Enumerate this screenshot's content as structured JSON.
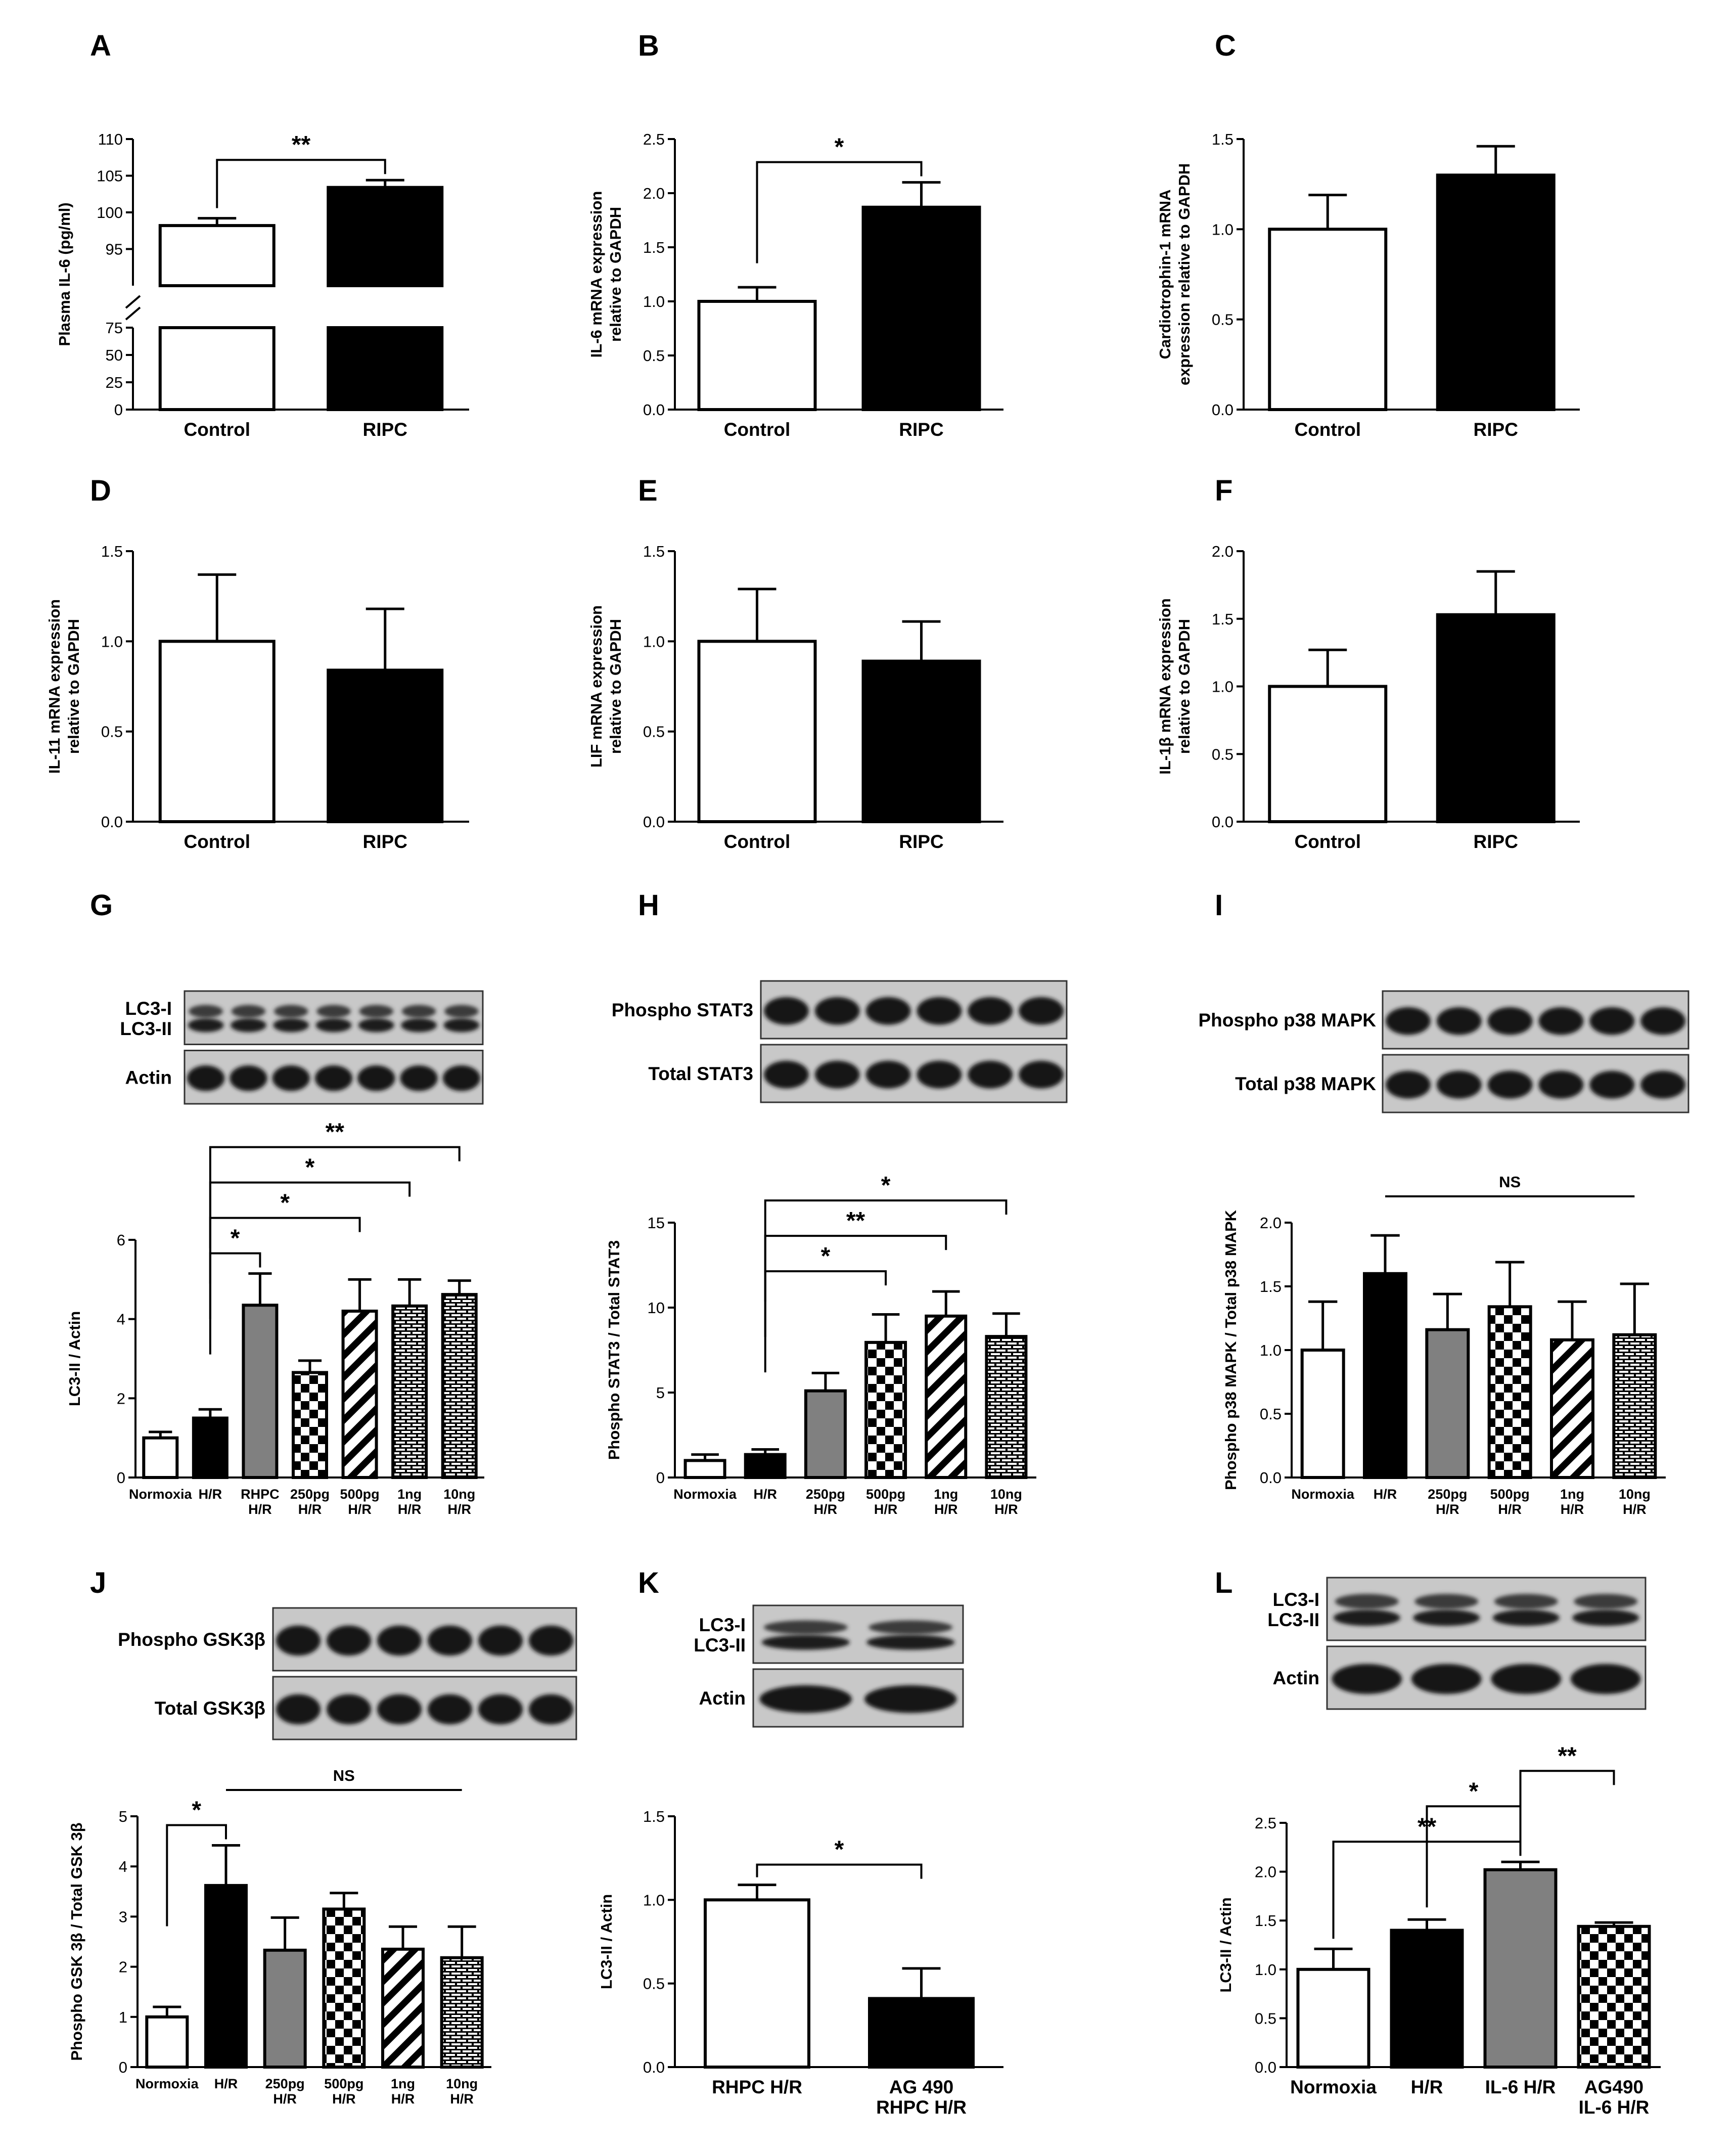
{
  "chart_data": [
    {
      "id": "A",
      "panel_label": "A",
      "type": "bar",
      "ylabel": "Plasma IL-6 (pg/ml)",
      "categories": [
        "Control",
        "RIPC"
      ],
      "values": [
        98.2,
        103.4
      ],
      "errors": [
        1.0,
        1.0
      ],
      "fills": [
        "white",
        "black"
      ],
      "axis_break": true,
      "lower_ticks": [
        0,
        25,
        50,
        75
      ],
      "upper_ticks": [
        95,
        100,
        105,
        110
      ],
      "tick_labels": [
        "0",
        "25",
        "50",
        "75",
        "95",
        "100",
        "105",
        "110"
      ],
      "significance": [
        {
          "from": 0,
          "to": 1,
          "label": "**",
          "level": 0
        }
      ]
    },
    {
      "id": "B",
      "panel_label": "B",
      "type": "bar",
      "ylabel": [
        "IL-6 mRNA expression",
        "relative to GAPDH"
      ],
      "categories": [
        "Control",
        "RIPC"
      ],
      "values": [
        1.0,
        1.87
      ],
      "errors": [
        0.13,
        0.23
      ],
      "fills": [
        "white",
        "black"
      ],
      "ylim": [
        0,
        2.5
      ],
      "ticks": [
        0,
        0.5,
        1.0,
        1.5,
        2.0,
        2.5
      ],
      "tick_labels": [
        "0.0",
        "0.5",
        "1.0",
        "1.5",
        "2.0",
        "2.5"
      ],
      "significance": [
        {
          "from": 0,
          "to": 1,
          "label": "*",
          "level": 0
        }
      ]
    },
    {
      "id": "C",
      "panel_label": "C",
      "type": "bar",
      "ylabel": [
        "Cardiotrophin-1 mRNA",
        "expression relative to GAPDH"
      ],
      "categories": [
        "Control",
        "RIPC"
      ],
      "values": [
        1.0,
        1.3
      ],
      "errors": [
        0.19,
        0.16
      ],
      "fills": [
        "white",
        "black"
      ],
      "ylim": [
        0,
        1.5
      ],
      "ticks": [
        0,
        0.5,
        1.0,
        1.5
      ],
      "tick_labels": [
        "0.0",
        "0.5",
        "1.0",
        "1.5"
      ],
      "significance": []
    },
    {
      "id": "D",
      "panel_label": "D",
      "type": "bar",
      "ylabel": [
        "IL-11 mRNA expression",
        "relative to GAPDH"
      ],
      "categories": [
        "Control",
        "RIPC"
      ],
      "values": [
        1.0,
        0.84
      ],
      "errors": [
        0.37,
        0.34
      ],
      "fills": [
        "white",
        "black"
      ],
      "ylim": [
        0,
        1.5
      ],
      "ticks": [
        0,
        0.5,
        1.0,
        1.5
      ],
      "tick_labels": [
        "0.0",
        "0.5",
        "1.0",
        "1.5"
      ],
      "significance": []
    },
    {
      "id": "E",
      "panel_label": "E",
      "type": "bar",
      "ylabel": [
        "LIF mRNA expression",
        "relative to GAPDH"
      ],
      "categories": [
        "Control",
        "RIPC"
      ],
      "values": [
        1.0,
        0.89
      ],
      "errors": [
        0.29,
        0.22
      ],
      "fills": [
        "white",
        "black"
      ],
      "ylim": [
        0,
        1.5
      ],
      "ticks": [
        0,
        0.5,
        1.0,
        1.5
      ],
      "tick_labels": [
        "0.0",
        "0.5",
        "1.0",
        "1.5"
      ],
      "significance": []
    },
    {
      "id": "F",
      "panel_label": "F",
      "type": "bar",
      "ylabel": [
        "IL-1β mRNA expression",
        "relative to GAPDH"
      ],
      "categories": [
        "Control",
        "RIPC"
      ],
      "values": [
        1.0,
        1.53
      ],
      "errors": [
        0.27,
        0.32
      ],
      "fills": [
        "white",
        "black"
      ],
      "ylim": [
        0,
        2.0
      ],
      "ticks": [
        0,
        0.5,
        1.0,
        1.5,
        2.0
      ],
      "tick_labels": [
        "0.0",
        "0.5",
        "1.0",
        "1.5",
        "2.0"
      ],
      "significance": []
    },
    {
      "id": "G",
      "panel_label": "G",
      "type": "bar",
      "ylabel": "LC3-II / Actin",
      "categories": [
        [
          "Normoxia"
        ],
        [
          "H/R"
        ],
        [
          "RHPC",
          "H/R"
        ],
        [
          "250pg",
          "H/R"
        ],
        [
          "500pg",
          "H/R"
        ],
        [
          "1ng",
          "H/R"
        ],
        [
          "10ng",
          "H/R"
        ]
      ],
      "values": [
        1.0,
        1.5,
        4.35,
        2.65,
        4.2,
        4.33,
        4.62
      ],
      "errors": [
        0.15,
        0.22,
        0.8,
        0.3,
        0.8,
        0.67,
        0.35
      ],
      "fills": [
        "white",
        "black",
        "gray",
        "checker",
        "diag",
        "brick",
        "brick"
      ],
      "ylim": [
        0,
        6
      ],
      "ticks": [
        0,
        2,
        4,
        6
      ],
      "tick_labels": [
        "0",
        "2",
        "4",
        "6"
      ],
      "significance": [
        {
          "from": 1,
          "to": 2,
          "label": "*",
          "level": 0
        },
        {
          "from": 1,
          "to": 4,
          "label": "*",
          "level": 1
        },
        {
          "from": 1,
          "to": 5,
          "label": "*",
          "level": 2
        },
        {
          "from": 1,
          "to": 6,
          "label": "**",
          "level": 3
        }
      ],
      "blot": {
        "rows": [
          {
            "label": [
              "LC3-I",
              "LC3-II"
            ],
            "lanes": 7,
            "double": true
          },
          {
            "label": [
              "Actin"
            ],
            "lanes": 7,
            "double": false
          }
        ]
      }
    },
    {
      "id": "H",
      "panel_label": "H",
      "type": "bar",
      "ylabel": "Phospho STAT3 / Total STAT3",
      "categories": [
        [
          "Normoxia"
        ],
        [
          "H/R"
        ],
        [
          "250pg",
          "H/R"
        ],
        [
          "500pg",
          "H/R"
        ],
        [
          "1ng",
          "H/R"
        ],
        [
          "10ng",
          "H/R"
        ]
      ],
      "values": [
        1.0,
        1.35,
        5.1,
        7.95,
        9.5,
        8.3
      ],
      "errors": [
        0.35,
        0.3,
        1.05,
        1.65,
        1.45,
        1.35
      ],
      "fills": [
        "white",
        "black",
        "gray",
        "checker",
        "diag",
        "brick"
      ],
      "ylim": [
        0,
        15
      ],
      "ticks": [
        0,
        5,
        10,
        15
      ],
      "tick_labels": [
        "0",
        "5",
        "10",
        "15"
      ],
      "significance": [
        {
          "from": 1,
          "to": 3,
          "label": "*",
          "level": 0
        },
        {
          "from": 1,
          "to": 4,
          "label": "**",
          "level": 1
        },
        {
          "from": 1,
          "to": 5,
          "label": "*",
          "level": 2
        }
      ],
      "blot": {
        "rows": [
          {
            "label": [
              "Phospho STAT3"
            ],
            "lanes": 6,
            "double": false
          },
          {
            "label": [
              "Total STAT3"
            ],
            "lanes": 6,
            "double": false
          }
        ]
      }
    },
    {
      "id": "I",
      "panel_label": "I",
      "type": "bar",
      "ylabel": "Phospho p38 MAPK / Total p38 MAPK",
      "categories": [
        [
          "Normoxia"
        ],
        [
          "H/R"
        ],
        [
          "250pg",
          "H/R"
        ],
        [
          "500pg",
          "H/R"
        ],
        [
          "1ng",
          "H/R"
        ],
        [
          "10ng",
          "H/R"
        ]
      ],
      "values": [
        1.0,
        1.6,
        1.16,
        1.34,
        1.08,
        1.12
      ],
      "errors": [
        0.38,
        0.3,
        0.28,
        0.35,
        0.3,
        0.4
      ],
      "fills": [
        "white",
        "black",
        "gray",
        "checker",
        "diag",
        "brick"
      ],
      "ylim": [
        0,
        2.0
      ],
      "ticks": [
        0,
        0.5,
        1.0,
        1.5,
        2.0
      ],
      "tick_labels": [
        "0.0",
        "0.5",
        "1.0",
        "1.5",
        "2.0"
      ],
      "ns": {
        "from": 1,
        "to": 5,
        "label": "NS"
      },
      "significance": [],
      "blot": {
        "rows": [
          {
            "label": [
              "Phospho p38 MAPK"
            ],
            "lanes": 6,
            "double": false
          },
          {
            "label": [
              "Total p38 MAPK"
            ],
            "lanes": 6,
            "double": false
          }
        ]
      }
    },
    {
      "id": "J",
      "panel_label": "J",
      "type": "bar",
      "ylabel": "Phospho GSK 3β / Total GSK 3β",
      "categories": [
        [
          "Normoxia"
        ],
        [
          "H/R"
        ],
        [
          "250pg",
          "H/R"
        ],
        [
          "500pg",
          "H/R"
        ],
        [
          "1ng",
          "H/R"
        ],
        [
          "10ng",
          "H/R"
        ]
      ],
      "values": [
        1.0,
        3.62,
        2.33,
        3.15,
        2.35,
        2.18
      ],
      "errors": [
        0.2,
        0.8,
        0.65,
        0.32,
        0.45,
        0.62
      ],
      "fills": [
        "white",
        "black",
        "gray",
        "checker",
        "diag",
        "brick"
      ],
      "ylim": [
        0,
        5
      ],
      "ticks": [
        0,
        1,
        2,
        3,
        4,
        5
      ],
      "tick_labels": [
        "0",
        "1",
        "2",
        "3",
        "4",
        "5"
      ],
      "ns": {
        "from": 1,
        "to": 5,
        "label": "NS"
      },
      "significance": [
        {
          "from": 0,
          "to": 1,
          "label": "*",
          "level": 0
        }
      ],
      "blot": {
        "rows": [
          {
            "label": [
              "Phospho GSK3β"
            ],
            "lanes": 6,
            "double": false
          },
          {
            "label": [
              "Total GSK3β"
            ],
            "lanes": 6,
            "double": false
          }
        ]
      }
    },
    {
      "id": "K",
      "panel_label": "K",
      "type": "bar",
      "ylabel": "LC3-II / Actin",
      "categories": [
        [
          "RHPC H/R"
        ],
        [
          "AG 490",
          "RHPC H/R"
        ]
      ],
      "values": [
        1.0,
        0.41
      ],
      "errors": [
        0.09,
        0.18
      ],
      "fills": [
        "white",
        "black"
      ],
      "ylim": [
        0,
        1.5
      ],
      "ticks": [
        0,
        0.5,
        1.0,
        1.5
      ],
      "tick_labels": [
        "0.0",
        "0.5",
        "1.0",
        "1.5"
      ],
      "significance": [
        {
          "from": 0,
          "to": 1,
          "label": "*",
          "level": 0
        }
      ],
      "blot": {
        "rows": [
          {
            "label": [
              "LC3-I",
              "LC3-II"
            ],
            "lanes": 2,
            "double": true
          },
          {
            "label": [
              "Actin"
            ],
            "lanes": 2,
            "double": false
          }
        ]
      }
    },
    {
      "id": "L",
      "panel_label": "L",
      "type": "bar",
      "ylabel": "LC3-II / Actin",
      "categories": [
        [
          "Normoxia"
        ],
        [
          "H/R"
        ],
        [
          "IL-6 H/R"
        ],
        [
          "AG490",
          "IL-6 H/R"
        ]
      ],
      "values": [
        1.0,
        1.4,
        2.02,
        1.44
      ],
      "errors": [
        0.21,
        0.11,
        0.08,
        0.04
      ],
      "fills": [
        "white",
        "black",
        "gray",
        "checker"
      ],
      "ylim": [
        0,
        2.5
      ],
      "ticks": [
        0,
        0.5,
        1.0,
        1.5,
        2.0,
        2.5
      ],
      "tick_labels": [
        "0.0",
        "0.5",
        "1.0",
        "1.5",
        "2.0",
        "2.5"
      ],
      "significance": [
        {
          "from": 0,
          "to": 2,
          "label": "**",
          "level": 0
        },
        {
          "from": 1,
          "to": 2,
          "label": "*",
          "level": 1
        },
        {
          "from": 2,
          "to": 3,
          "label": "**",
          "level": 2
        }
      ],
      "blot": {
        "rows": [
          {
            "label": [
              "LC3-I",
              "LC3-II"
            ],
            "lanes": 4,
            "double": true
          },
          {
            "label": [
              "Actin"
            ],
            "lanes": 4,
            "double": false
          }
        ]
      }
    }
  ]
}
